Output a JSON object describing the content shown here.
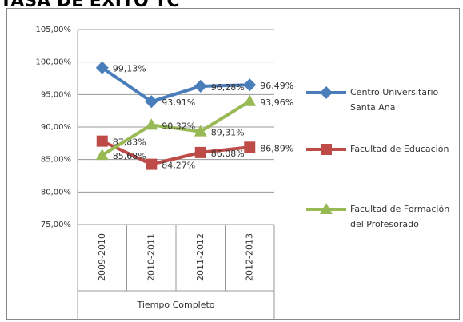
{
  "chart_data": {
    "type": "line",
    "title": "TASA DE EXITO TC",
    "categories": [
      "2009-2010",
      "2010-2011",
      "2011-2012",
      "2012-2013"
    ],
    "x_group_label": "Tiempo Completo",
    "ylim": [
      75,
      105
    ],
    "yticks": [
      {
        "value": 75,
        "label": "75,00%"
      },
      {
        "value": 80,
        "label": "80,00%"
      },
      {
        "value": 85,
        "label": "85,00%"
      },
      {
        "value": 90,
        "label": "90,00%"
      },
      {
        "value": 95,
        "label": "95,00%"
      },
      {
        "value": 100,
        "label": "100,00%"
      },
      {
        "value": 105,
        "label": "105,00%"
      }
    ],
    "grid": true,
    "legend": "right",
    "series": [
      {
        "name": "Centro Universitario Santa Ana",
        "color": "#4a7ebb",
        "marker": "diamond",
        "values": [
          99.13,
          93.91,
          96.28,
          96.49
        ],
        "value_labels": [
          "99,13%",
          "93,91%",
          "96,28%",
          "96,49%"
        ]
      },
      {
        "name": "Facultad de Educación",
        "color": "#be4b48",
        "marker": "square",
        "values": [
          87.83,
          84.27,
          86.08,
          86.89
        ],
        "value_labels": [
          "87,83%",
          "84,27%",
          "86,08%",
          "86,89%"
        ]
      },
      {
        "name": "Facultad de Formación del Profesorado",
        "color": "#98b954",
        "marker": "triangle",
        "values": [
          85.68,
          90.32,
          89.31,
          93.96
        ],
        "value_labels": [
          "85,68%",
          "90,32%",
          "89,31%",
          "93,96%"
        ]
      }
    ]
  }
}
